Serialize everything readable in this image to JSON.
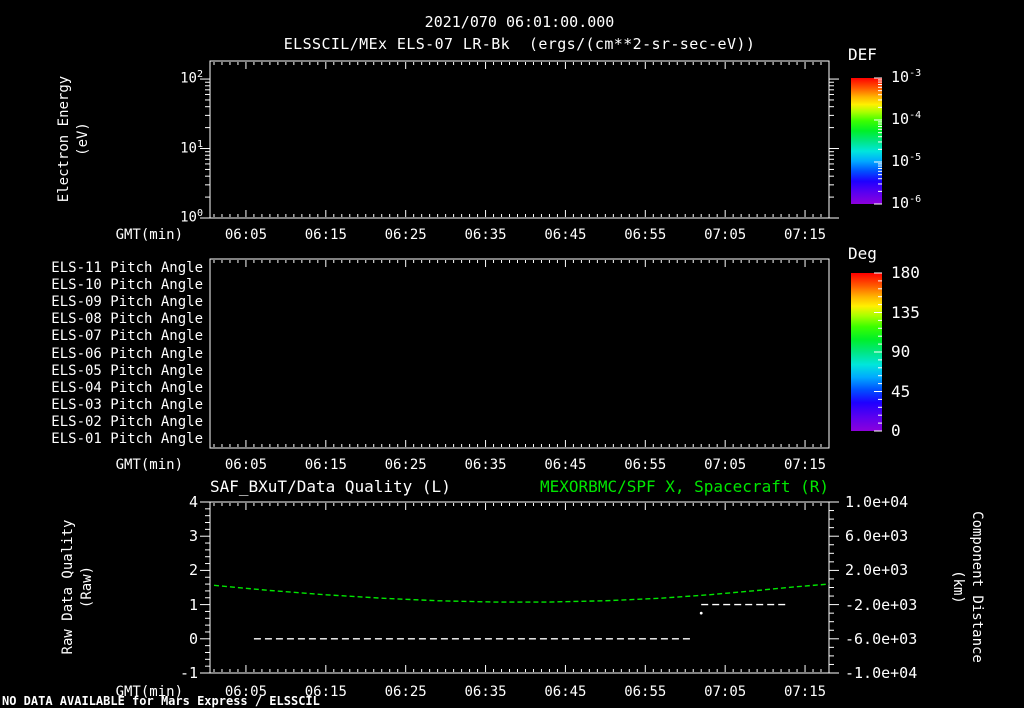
{
  "title": "2021/070 06:01:00.000",
  "subtitle": "ELSSCIL/MEx ELS-07 LR-Bk  (ergs/(cm**2-sr-sec-eV))",
  "status_text": "NO DATA AVAILABLE for Mars Express / ELSSCIL",
  "colors": {
    "background": "#000000",
    "foreground": "#ffffff",
    "accent_green": "#00e600",
    "rainbow_gradient": [
      "#ff0000",
      "#ff5a00 8%",
      "#ffb400 15%",
      "#fff000 21%",
      "#aaff00 27%",
      "#3cff00 34%",
      "#00f028 42%",
      "#00e682 50%",
      "#00e6dc 58%",
      "#00aaff 66%",
      "#0050ff 74%",
      "#1e00ff 82%",
      "#5a00f0 91%",
      "#8c00dc 100%"
    ]
  },
  "time_axis": {
    "label": "GMT(min)",
    "ticks": [
      "06:05",
      "06:15",
      "06:25",
      "06:35",
      "06:45",
      "06:55",
      "07:05",
      "07:15"
    ],
    "domain_minutes": [
      360.5,
      438
    ]
  },
  "panel_energy": {
    "ylabel": "Electron Energy\n(eV)"
  },
  "panel_quality": {
    "title_left": "SAF_BXuT/Data Quality (L)",
    "title_right": "MEXORBMC/SPF X, Spacecraft (R)",
    "ylabel_left": "Raw Data Quality\n(Raw)",
    "ylabel_right": "Component Distance\n(km)",
    "yticks_left": [
      "4",
      "3",
      "2",
      "1",
      "0",
      "-1"
    ],
    "yticks_right": [
      "1.0e+04",
      "6.0e+03",
      "2.0e+03",
      "-2.0e+03",
      "-6.0e+03",
      "-1.0e+04"
    ]
  },
  "colorbar_def": {
    "label": "DEF",
    "tick_exponents": [
      "-3",
      "-4",
      "-5",
      "-6"
    ]
  },
  "colorbar_deg": {
    "label": "Deg",
    "ticks": [
      "180",
      "135",
      "90",
      "45",
      "0"
    ]
  },
  "chart_data": [
    {
      "type": "heatmap",
      "name": "electron-energy-spectrogram",
      "title": "ELSSCIL/MEx ELS-07 LR-Bk",
      "units": "ergs/(cm**2-sr-sec-eV)",
      "xlabel": "GMT(min)",
      "x_ticks": [
        "06:05",
        "06:15",
        "06:25",
        "06:35",
        "06:45",
        "06:55",
        "07:05",
        "07:15"
      ],
      "ylabel": "Electron Energy (eV)",
      "y_scale": "log",
      "y_ticks": [
        100,
        10,
        1
      ],
      "colorbar": {
        "label": "DEF",
        "scale": "log",
        "ticks": [
          0.001,
          0.0001,
          1e-05,
          1e-06
        ]
      },
      "values": [],
      "note": "panel empty - no data available"
    },
    {
      "type": "heatmap",
      "name": "pitch-angle-panel",
      "rows": [
        "ELS-11 Pitch Angle",
        "ELS-10 Pitch Angle",
        "ELS-09 Pitch Angle",
        "ELS-08 Pitch Angle",
        "ELS-07 Pitch Angle",
        "ELS-06 Pitch Angle",
        "ELS-05 Pitch Angle",
        "ELS-04 Pitch Angle",
        "ELS-03 Pitch Angle",
        "ELS-02 Pitch Angle",
        "ELS-01 Pitch Angle"
      ],
      "xlabel": "GMT(min)",
      "x_ticks": [
        "06:05",
        "06:15",
        "06:25",
        "06:35",
        "06:45",
        "06:55",
        "07:05",
        "07:15"
      ],
      "colorbar": {
        "label": "Deg",
        "units": "degrees",
        "ticks": [
          180,
          135,
          90,
          45,
          0
        ]
      },
      "values": [],
      "note": "panel empty - no data available"
    },
    {
      "type": "line",
      "name": "quality-and-distance",
      "xlabel": "GMT(min)",
      "x_ticks": [
        "06:05",
        "06:15",
        "06:25",
        "06:35",
        "06:45",
        "06:55",
        "07:05",
        "07:15"
      ],
      "left_axis": {
        "label": "Raw Data Quality (Raw)",
        "range": [
          -1,
          4
        ],
        "ticks": [
          4,
          3,
          2,
          1,
          0,
          -1
        ]
      },
      "right_axis": {
        "label": "Component Distance (km)",
        "range": [
          -10000,
          10000
        ],
        "ticks": [
          10000,
          6000,
          2000,
          -2000,
          -6000,
          -10000
        ]
      },
      "series": [
        {
          "name": "SAF_BXuT/Data Quality (L)",
          "axis": "left",
          "color": "#ffffff",
          "line_style": "dashed",
          "segments": [
            {
              "value": 0,
              "t_start": "06:06",
              "t_end": "07:01"
            },
            {
              "value": 1,
              "t_start": "07:02",
              "t_end": "07:13"
            }
          ],
          "isolated_point": {
            "t": "07:02",
            "value": 0.75
          }
        },
        {
          "name": "MEXORBMC/SPF X, Spacecraft (R)",
          "axis": "right",
          "color": "#00e600",
          "line_style": "dashed",
          "t": [
            "06:01",
            "06:08",
            "06:15",
            "06:22",
            "06:29",
            "06:36",
            "06:43",
            "06:50",
            "06:57",
            "07:03",
            "07:09",
            "07:14",
            "07:18"
          ],
          "km": [
            250,
            -350,
            -850,
            -1250,
            -1550,
            -1700,
            -1700,
            -1550,
            -1250,
            -850,
            -350,
            100,
            400
          ]
        }
      ]
    }
  ]
}
